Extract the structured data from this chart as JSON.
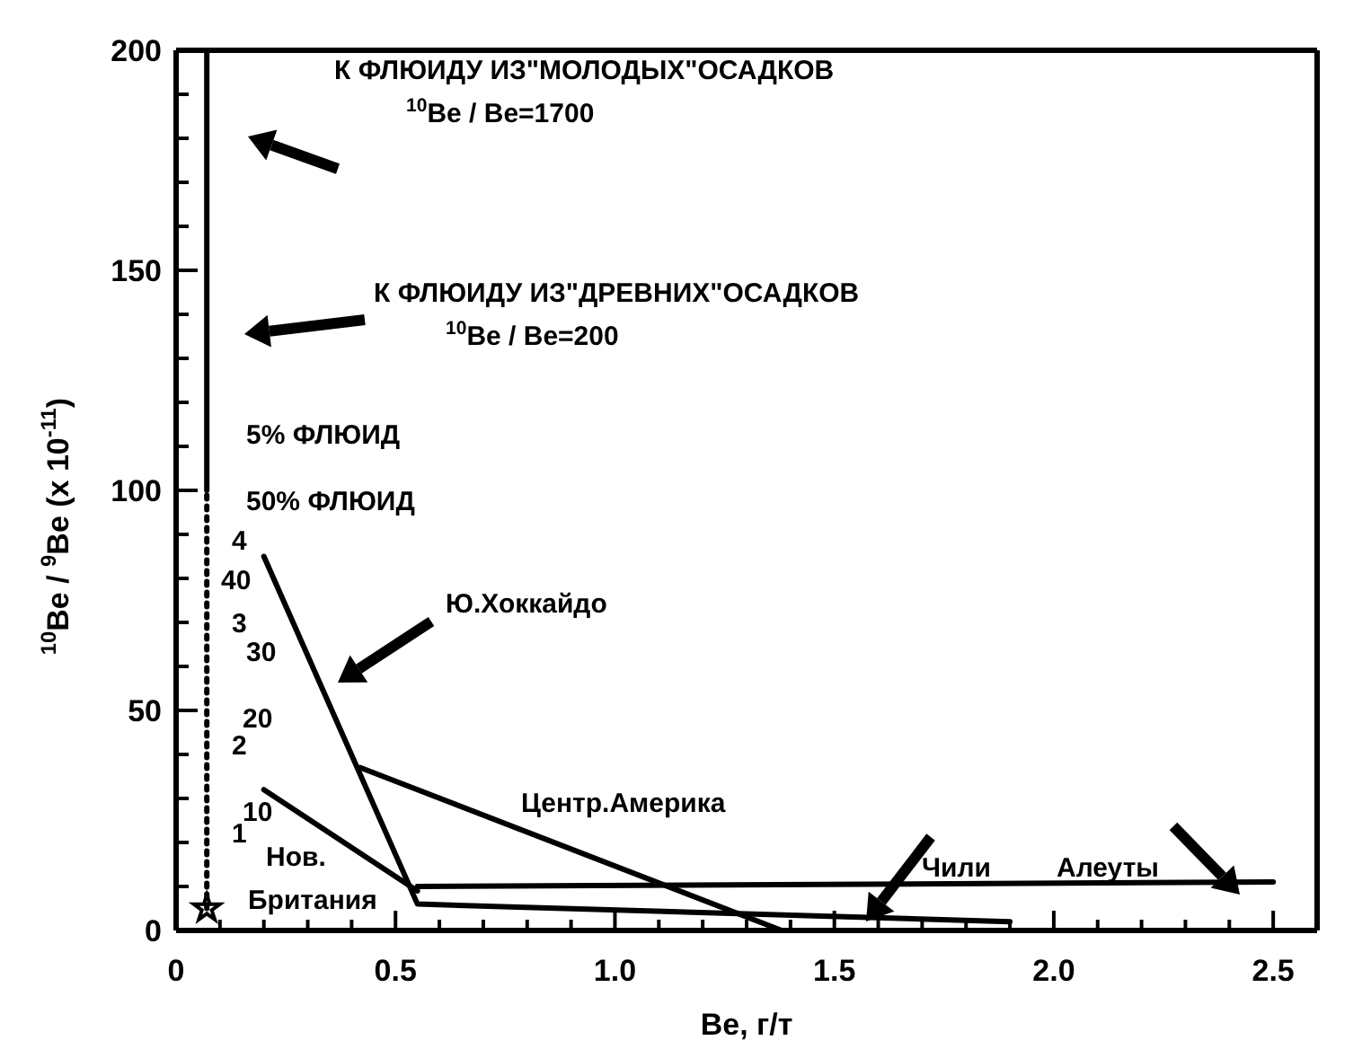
{
  "chart_data": {
    "type": "line",
    "xlabel": "Be, г/т",
    "ylabel": "$^{10}$Be / $^{9}$Be (x 10$^{-11}$)",
    "xlim": [
      0,
      2.6
    ],
    "xticks": [
      0,
      {
        "value": 0.1,
        "label": null
      },
      {
        "value": 0.2,
        "label": null
      },
      {
        "value": 0.3,
        "label": null
      },
      {
        "value": 0.4,
        "label": null
      },
      0.5,
      {
        "value": 0.6,
        "label": null
      },
      {
        "value": 0.7,
        "label": null
      },
      {
        "value": 0.8,
        "label": null
      },
      {
        "value": 0.9,
        "label": null
      },
      {
        "value": 1,
        "label": "1.0"
      },
      {
        "value": 1.1,
        "label": null
      },
      {
        "value": 1.2,
        "label": null
      },
      {
        "value": 1.3,
        "label": null
      },
      {
        "value": 1.4,
        "label": null
      },
      1.5,
      {
        "value": 1.6,
        "label": null
      },
      {
        "value": 1.7,
        "label": null
      },
      {
        "value": 1.8,
        "label": null
      },
      {
        "value": 1.9,
        "label": null
      },
      {
        "value": 2,
        "label": "2.0"
      },
      {
        "value": 2.1,
        "label": null
      },
      {
        "value": 2.2,
        "label": null
      },
      {
        "value": 2.3,
        "label": null
      },
      {
        "value": 2.4,
        "label": null
      },
      2.5
    ],
    "ylim": [
      0,
      200
    ],
    "yticks": [
      0,
      {
        "value": 10,
        "label": null
      },
      {
        "value": 20,
        "label": null
      },
      {
        "value": 30,
        "label": null
      },
      {
        "value": 40,
        "label": null
      },
      50,
      {
        "value": 60,
        "label": null
      },
      {
        "value": 70,
        "label": null
      },
      {
        "value": 80,
        "label": null
      },
      {
        "value": 90,
        "label": null
      },
      100,
      {
        "value": 110,
        "label": null
      },
      {
        "value": 120,
        "label": null
      },
      {
        "value": 130,
        "label": null
      },
      {
        "value": 140,
        "label": null
      },
      150,
      {
        "value": 160,
        "label": null
      },
      {
        "value": 170,
        "label": null
      },
      {
        "value": 180,
        "label": null
      },
      {
        "value": 190,
        "label": null
      },
      200
    ],
    "marker": "none",
    "series": [
      {
        "color": "#000000",
        "line_style": "solid",
        "x": [
          0.07,
          0.07
        ],
        "values": [
          100,
          200
        ]
      },
      {
        "color": "#000000",
        "line_style": "dotted",
        "x": [
          0.07,
          0.07
        ],
        "values": [
          5,
          100
        ]
      },
      {
        "color": "#000000",
        "line_style": "solid",
        "x": [
          0.2,
          0.55,
          1.9
        ],
        "values": [
          85,
          6,
          2
        ]
      },
      {
        "color": "#000000",
        "line_style": "solid",
        "x": [
          0.2,
          0.55
        ],
        "values": [
          32,
          9
        ]
      },
      {
        "color": "#000000",
        "line_style": "solid",
        "x": [
          0.42,
          1.38
        ],
        "values": [
          37,
          0
        ]
      },
      {
        "color": "#000000",
        "line_style": "solid",
        "x": [
          0.55,
          2.5
        ],
        "values": [
          10,
          11
        ]
      },
      {
        "type": "scatter",
        "marker": "star",
        "color": "#000000",
        "x": [
          0.07
        ],
        "values": [
          5
        ]
      }
    ],
    "annotations": [
      "К ФЛЮИДУ ИЗ\"МОЛОДЫХ\"ОСАДКОВ\n$^{10}$Be / Be=1700",
      "К ФЛЮИДУ ИЗ\"ДРЕВНИХ\"ОСАДКОВ\n$^{10}$Be / Be=200",
      "5% ФЛЮИД",
      "50% ФЛЮИД",
      "1",
      "2",
      "3",
      "4",
      "10",
      "20",
      "30",
      "40",
      "Ю.Хоккайдо",
      "Центр.Америка",
      "Нов.\nБритания",
      "Чили",
      "Алеуты"
    ]
  }
}
